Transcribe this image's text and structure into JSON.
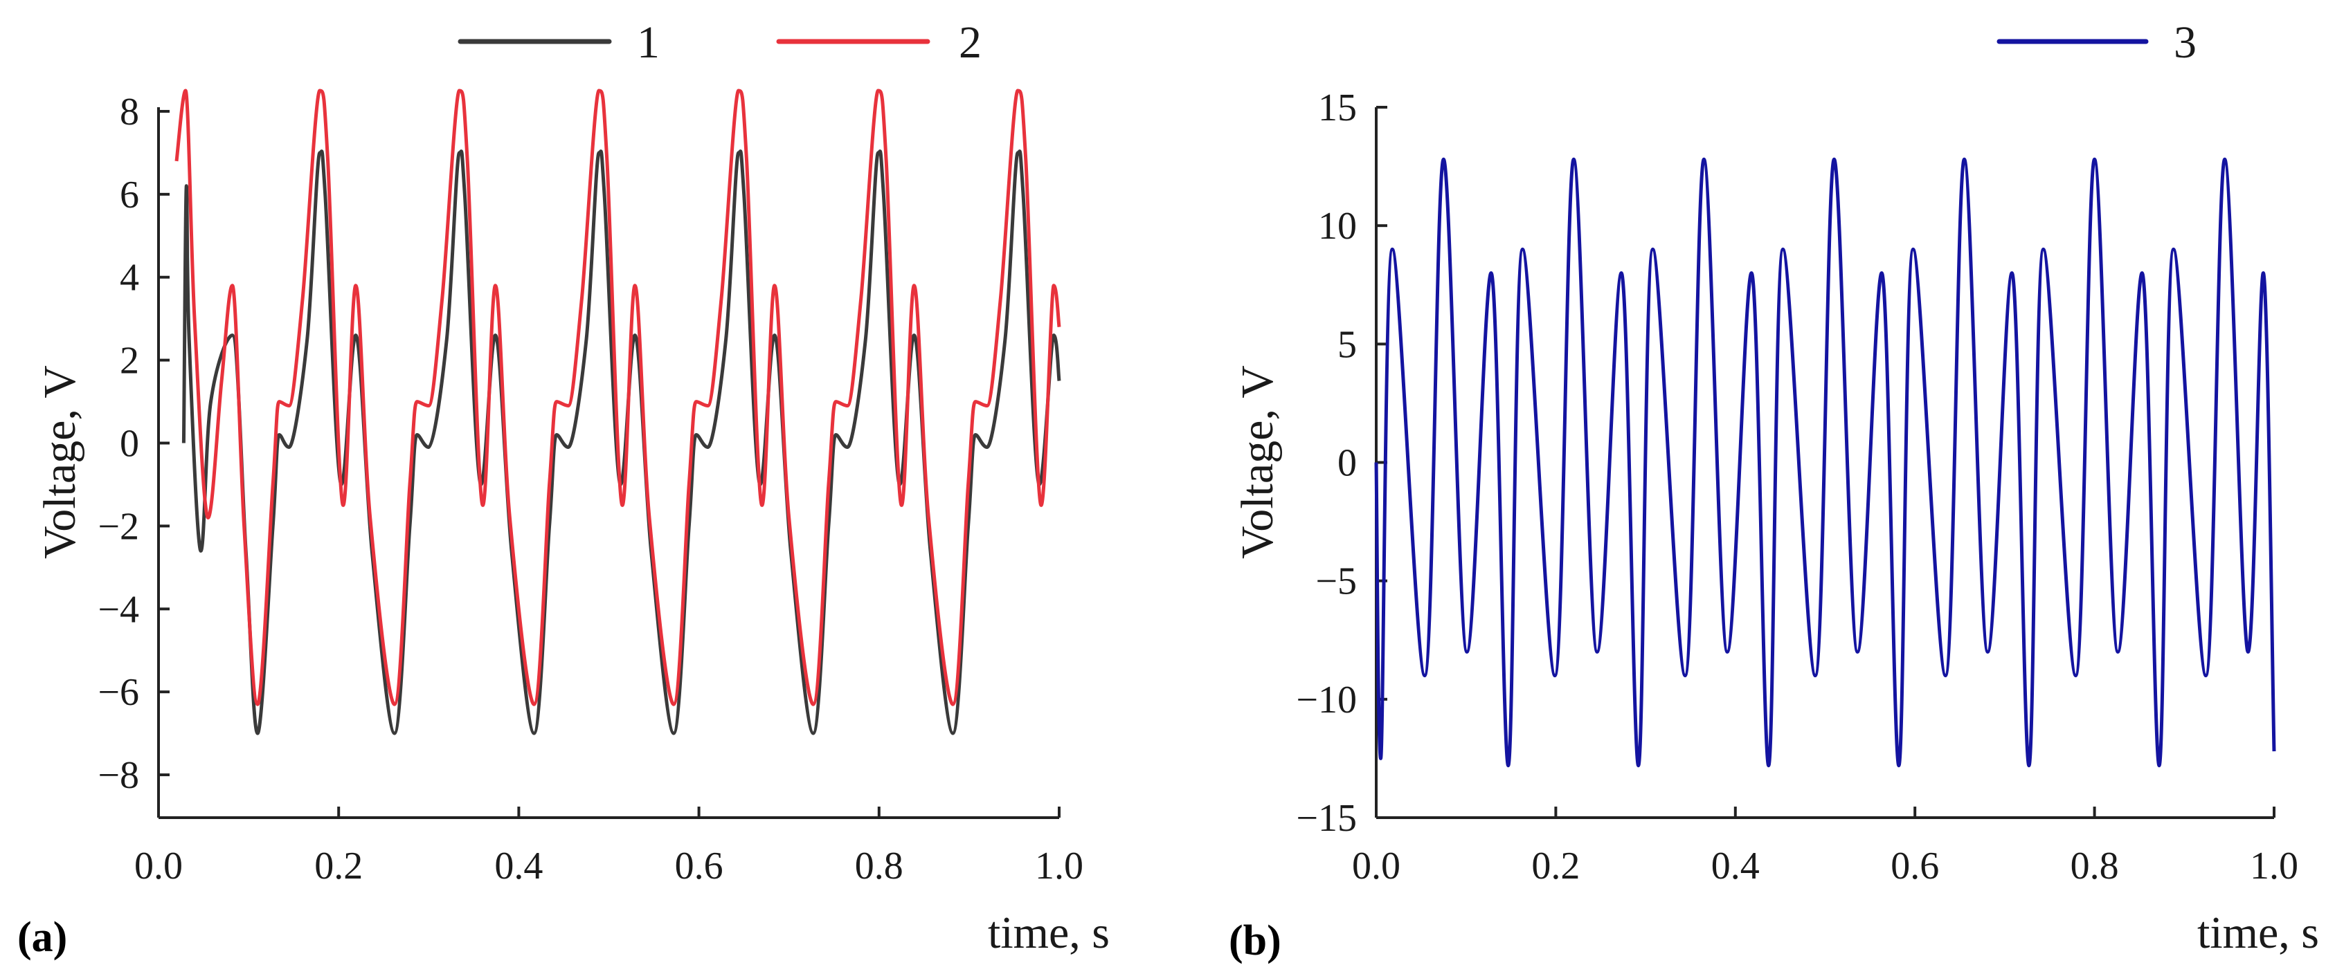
{
  "colors": {
    "series_1": "#3a3a3a",
    "series_2": "#e8323c",
    "series_3": "#1414a0",
    "axis": "#222222",
    "text": "#1a1a1a"
  },
  "chart_data": [
    {
      "type": "line",
      "panel_label": "(a)",
      "title": "",
      "xlabel": "time, s",
      "ylabel": "Voltage, V",
      "xlim": [
        0.0,
        1.0
      ],
      "ylim": [
        -9,
        9
      ],
      "xticks": [
        0.0,
        0.2,
        0.4,
        0.6,
        0.8,
        1.0
      ],
      "xtick_labels": [
        "0.0",
        "0.2",
        "0.4",
        "0.6",
        "0.8",
        "1.0"
      ],
      "yticks": [
        -8,
        -6,
        -4,
        -2,
        0,
        2,
        4,
        6,
        8
      ],
      "ytick_labels": [
        "−8",
        "−6",
        "−4",
        "−2",
        "0",
        "2",
        "4",
        "6",
        "8"
      ],
      "legend_position": "top",
      "series": [
        {
          "name": "1",
          "color": "#3a3a3a",
          "start_x": 0.028,
          "x": [
            0.028,
            0.031,
            0.034,
            0.047,
            0.058,
            0.082,
            0.097,
            0.11,
            0.127,
            0.134,
            0.145,
            0.165,
            0.179,
            0.185,
            0.203,
            0.219,
            0.237,
            0.262,
            0.279,
            0.287,
            0.3,
            0.32,
            0.334,
            0.34,
            0.358,
            0.374,
            0.392,
            0.417,
            0.434,
            0.442,
            0.455,
            0.475,
            0.489,
            0.495,
            0.513,
            0.529,
            0.547,
            0.572,
            0.589,
            0.597,
            0.61,
            0.63,
            0.644,
            0.65,
            0.668,
            0.684,
            0.702,
            0.727,
            0.744,
            0.752,
            0.765,
            0.785,
            0.799,
            0.805,
            0.823,
            0.839,
            0.857,
            0.882,
            0.899,
            0.907,
            0.92,
            0.94,
            0.954,
            0.96,
            0.978,
            0.994,
            1.0
          ],
          "values": [
            0.0,
            6.2,
            2.5,
            -2.6,
            1.0,
            2.6,
            -2.6,
            -7.0,
            -2.0,
            0.2,
            -0.1,
            2.5,
            7.0,
            6.0,
            -1.0,
            2.6,
            -2.6,
            -7.0,
            -2.0,
            0.2,
            -0.1,
            2.5,
            7.0,
            6.0,
            -1.0,
            2.6,
            -2.6,
            -7.0,
            -2.0,
            0.2,
            -0.1,
            2.5,
            7.0,
            6.0,
            -1.0,
            2.6,
            -2.6,
            -7.0,
            -2.0,
            0.2,
            -0.1,
            2.5,
            7.0,
            6.0,
            -1.0,
            2.6,
            -2.6,
            -7.0,
            -2.0,
            0.2,
            -0.1,
            2.5,
            7.0,
            6.0,
            -1.0,
            2.6,
            -2.6,
            -7.0,
            -2.0,
            0.2,
            -0.1,
            2.5,
            7.0,
            6.0,
            -1.0,
            2.6,
            1.5
          ]
        },
        {
          "name": "2",
          "color": "#e8323c",
          "start_x": 0.02,
          "x": [
            0.02,
            0.03,
            0.04,
            0.055,
            0.07,
            0.082,
            0.095,
            0.11,
            0.127,
            0.134,
            0.145,
            0.16,
            0.179,
            0.188,
            0.205,
            0.219,
            0.235,
            0.262,
            0.279,
            0.287,
            0.3,
            0.315,
            0.334,
            0.343,
            0.36,
            0.374,
            0.39,
            0.417,
            0.434,
            0.442,
            0.455,
            0.47,
            0.489,
            0.498,
            0.515,
            0.529,
            0.545,
            0.572,
            0.589,
            0.597,
            0.61,
            0.625,
            0.644,
            0.653,
            0.67,
            0.684,
            0.7,
            0.727,
            0.744,
            0.752,
            0.765,
            0.78,
            0.799,
            0.808,
            0.825,
            0.839,
            0.855,
            0.882,
            0.899,
            0.907,
            0.92,
            0.935,
            0.954,
            0.963,
            0.98,
            0.994,
            1.0
          ],
          "values": [
            6.8,
            8.5,
            3.0,
            -1.8,
            1.5,
            3.8,
            -2.0,
            -6.3,
            -1.0,
            1.0,
            0.9,
            3.5,
            8.5,
            6.8,
            -1.5,
            3.8,
            -1.8,
            -6.3,
            -1.0,
            1.0,
            0.9,
            3.5,
            8.5,
            6.8,
            -1.5,
            3.8,
            -1.8,
            -6.3,
            -1.0,
            1.0,
            0.9,
            3.5,
            8.5,
            6.8,
            -1.5,
            3.8,
            -1.8,
            -6.3,
            -1.0,
            1.0,
            0.9,
            3.5,
            8.5,
            6.8,
            -1.5,
            3.8,
            -1.8,
            -6.3,
            -1.0,
            1.0,
            0.9,
            3.5,
            8.5,
            6.8,
            -1.5,
            3.8,
            -1.8,
            -6.3,
            -1.0,
            1.0,
            0.9,
            3.5,
            8.5,
            6.8,
            -1.5,
            3.8,
            2.8
          ]
        }
      ]
    },
    {
      "type": "line",
      "panel_label": "(b)",
      "title": "",
      "xlabel": "time, s",
      "ylabel": "Voltage, V",
      "xlim": [
        0.0,
        1.0
      ],
      "ylim": [
        -15,
        15
      ],
      "xticks": [
        0.0,
        0.2,
        0.4,
        0.6,
        0.8,
        1.0
      ],
      "xtick_labels": [
        "0.0",
        "0.2",
        "0.4",
        "0.6",
        "0.8",
        "1.0"
      ],
      "yticks": [
        -15,
        -10,
        -5,
        0,
        5,
        10,
        15
      ],
      "ytick_labels": [
        "−15",
        "−10",
        "−5",
        "0",
        "5",
        "10",
        "15"
      ],
      "legend_position": "top-right",
      "series": [
        {
          "name": "3",
          "color": "#1414a0",
          "x": [
            0.0,
            0.005,
            0.018,
            0.054,
            0.075,
            0.101,
            0.128,
            0.147,
            0.163,
            0.199,
            0.22,
            0.246,
            0.273,
            0.292,
            0.308,
            0.344,
            0.365,
            0.391,
            0.418,
            0.437,
            0.453,
            0.489,
            0.51,
            0.536,
            0.563,
            0.582,
            0.598,
            0.634,
            0.655,
            0.681,
            0.708,
            0.727,
            0.743,
            0.779,
            0.8,
            0.826,
            0.853,
            0.872,
            0.888,
            0.924,
            0.945,
            0.971,
            0.988,
            1.0
          ],
          "values": [
            0.0,
            -12.5,
            9.0,
            -9.0,
            12.8,
            -8.0,
            8.0,
            -12.8,
            9.0,
            -9.0,
            12.8,
            -8.0,
            8.0,
            -12.8,
            9.0,
            -9.0,
            12.8,
            -8.0,
            8.0,
            -12.8,
            9.0,
            -9.0,
            12.8,
            -8.0,
            8.0,
            -12.8,
            9.0,
            -9.0,
            12.8,
            -8.0,
            8.0,
            -12.8,
            9.0,
            -9.0,
            12.8,
            -8.0,
            8.0,
            -12.8,
            9.0,
            -9.0,
            12.8,
            -8.0,
            8.0,
            -12.2
          ]
        }
      ]
    }
  ]
}
